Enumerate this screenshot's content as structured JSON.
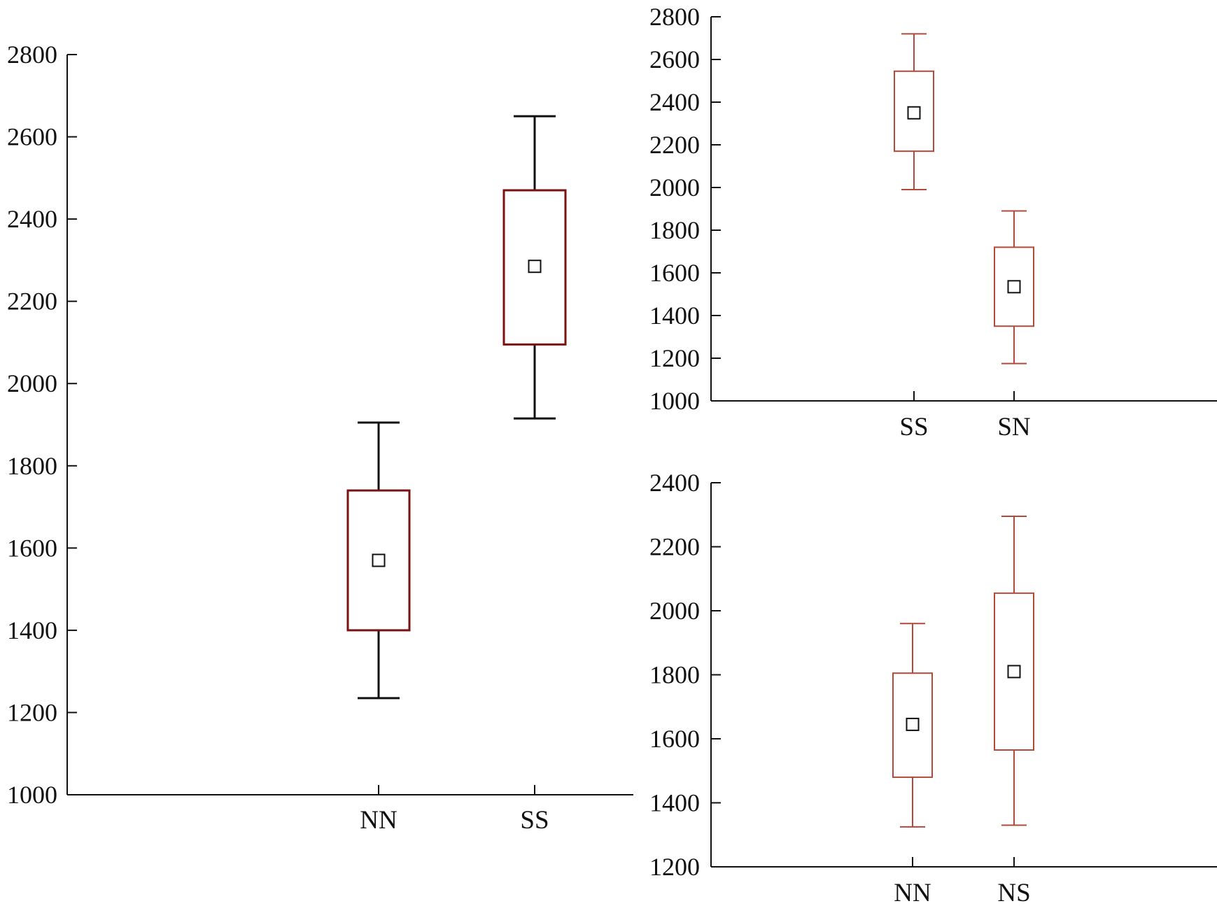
{
  "chart_data": [
    {
      "type": "box",
      "title": "",
      "xlabel": "",
      "ylabel": "",
      "ylim": [
        1000,
        2800
      ],
      "yticks": [
        "1000",
        "1200",
        "1400",
        "1600",
        "1800",
        "2000",
        "2200",
        "2400",
        "2600",
        "2800"
      ],
      "categories": [
        "NN",
        "SS"
      ],
      "boxes": [
        {
          "category": "NN",
          "whisker_low": 1235,
          "q1": 1400,
          "q3": 1740,
          "whisker_high": 1905,
          "mean": 1570
        },
        {
          "category": "SS",
          "whisker_low": 1915,
          "q1": 2095,
          "q3": 2470,
          "whisker_high": 2650,
          "mean": 2285
        }
      ],
      "grid": false
    },
    {
      "type": "box",
      "title": "",
      "xlabel": "",
      "ylabel": "",
      "ylim": [
        1000,
        2800
      ],
      "yticks": [
        "1000",
        "1200",
        "1400",
        "1600",
        "1800",
        "2000",
        "2200",
        "2400",
        "2600",
        "2800"
      ],
      "categories": [
        "SS",
        "SN"
      ],
      "boxes": [
        {
          "category": "SS",
          "whisker_low": 1990,
          "q1": 2170,
          "q3": 2545,
          "whisker_high": 2720,
          "mean": 2350
        },
        {
          "category": "SN",
          "whisker_low": 1175,
          "q1": 1350,
          "q3": 1720,
          "whisker_high": 1890,
          "mean": 1535
        }
      ],
      "grid": false
    },
    {
      "type": "box",
      "title": "",
      "xlabel": "",
      "ylabel": "",
      "ylim": [
        1200,
        2400
      ],
      "yticks": [
        "1200",
        "1400",
        "1600",
        "1800",
        "2000",
        "2200",
        "2400"
      ],
      "categories": [
        "NN",
        "NS"
      ],
      "boxes": [
        {
          "category": "NN",
          "whisker_low": 1325,
          "q1": 1480,
          "q3": 1805,
          "whisker_high": 1960,
          "mean": 1645
        },
        {
          "category": "NS",
          "whisker_low": 1330,
          "q1": 1565,
          "q3": 2055,
          "whisker_high": 2295,
          "mean": 1810
        }
      ],
      "grid": false
    }
  ],
  "colors": {
    "axis": "#111111",
    "panel1_box": "#7a1212",
    "panel1_whisker": "#111111",
    "panels23_box": "#b04a3a",
    "mean_marker": "#111111"
  }
}
